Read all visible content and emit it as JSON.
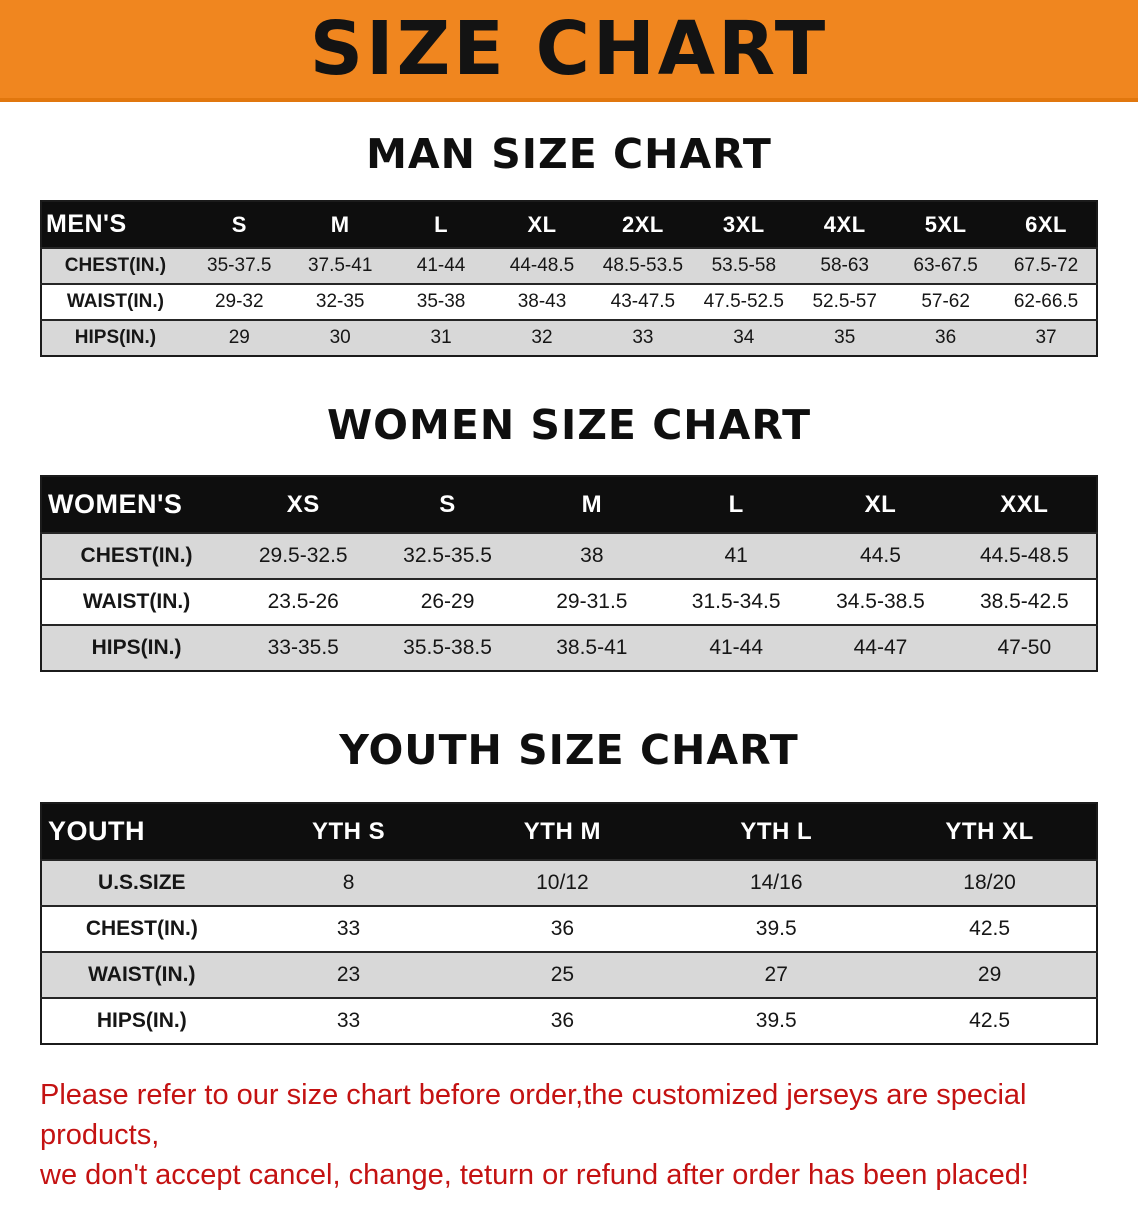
{
  "banner": {
    "title": "SIZE CHART",
    "background_color": "#f0861f",
    "text_color": "#131313"
  },
  "sections": {
    "men": {
      "heading": "MAN SIZE CHART",
      "table": {
        "header": [
          "MEN'S",
          "S",
          "M",
          "L",
          "XL",
          "2XL",
          "3XL",
          "4XL",
          "5XL",
          "6XL"
        ],
        "rows": [
          [
            "CHEST(IN.)",
            "35-37.5",
            "37.5-41",
            "41-44",
            "44-48.5",
            "48.5-53.5",
            "53.5-58",
            "58-63",
            "63-67.5",
            "67.5-72"
          ],
          [
            "WAIST(IN.)",
            "29-32",
            "32-35",
            "35-38",
            "38-43",
            "43-47.5",
            "47.5-52.5",
            "52.5-57",
            "57-62",
            "62-66.5"
          ],
          [
            "HIPS(IN.)",
            "29",
            "30",
            "31",
            "32",
            "33",
            "34",
            "35",
            "36",
            "37"
          ]
        ]
      }
    },
    "women": {
      "heading": "WOMEN SIZE CHART",
      "table": {
        "header": [
          "WOMEN'S",
          "XS",
          "S",
          "M",
          "L",
          "XL",
          "XXL"
        ],
        "rows": [
          [
            "CHEST(IN.)",
            "29.5-32.5",
            "32.5-35.5",
            "38",
            "41",
            "44.5",
            "44.5-48.5"
          ],
          [
            "WAIST(IN.)",
            "23.5-26",
            "26-29",
            "29-31.5",
            "31.5-34.5",
            "34.5-38.5",
            "38.5-42.5"
          ],
          [
            "HIPS(IN.)",
            "33-35.5",
            "35.5-38.5",
            "38.5-41",
            "41-44",
            "44-47",
            "47-50"
          ]
        ]
      }
    },
    "youth": {
      "heading": "YOUTH SIZE CHART",
      "table": {
        "header": [
          "YOUTH",
          "YTH S",
          "YTH M",
          "YTH L",
          "YTH XL"
        ],
        "rows": [
          [
            "U.S.SIZE",
            "8",
            "10/12",
            "14/16",
            "18/20"
          ],
          [
            "CHEST(IN.)",
            "33",
            "36",
            "39.5",
            "42.5"
          ],
          [
            "WAIST(IN.)",
            "23",
            "25",
            "27",
            "29"
          ],
          [
            "HIPS(IN.)",
            "33",
            "36",
            "39.5",
            "42.5"
          ]
        ]
      }
    }
  },
  "notice": {
    "line1": "Please refer to our size chart before order,the customized jerseys are special products,",
    "line2": "we don't accept cancel, change, teturn or refund after order has been placed!",
    "text_color": "#c41212"
  },
  "stripe_color": "#d8d8d8",
  "header_bar_color": "#0e0e0e"
}
